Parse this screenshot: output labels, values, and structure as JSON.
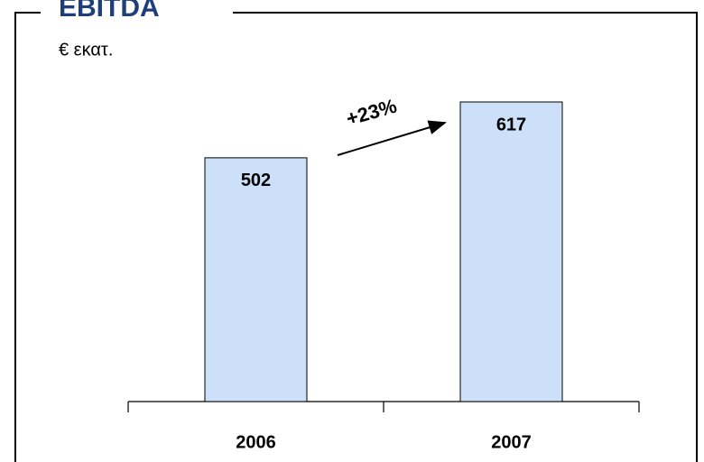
{
  "chart_data": {
    "type": "bar",
    "title": "EBITDA",
    "subtitle": "€ εκατ.",
    "categories": [
      "2006",
      "2007"
    ],
    "values": [
      502,
      617
    ],
    "color": "#cce0fa",
    "annotation": "+23%"
  }
}
